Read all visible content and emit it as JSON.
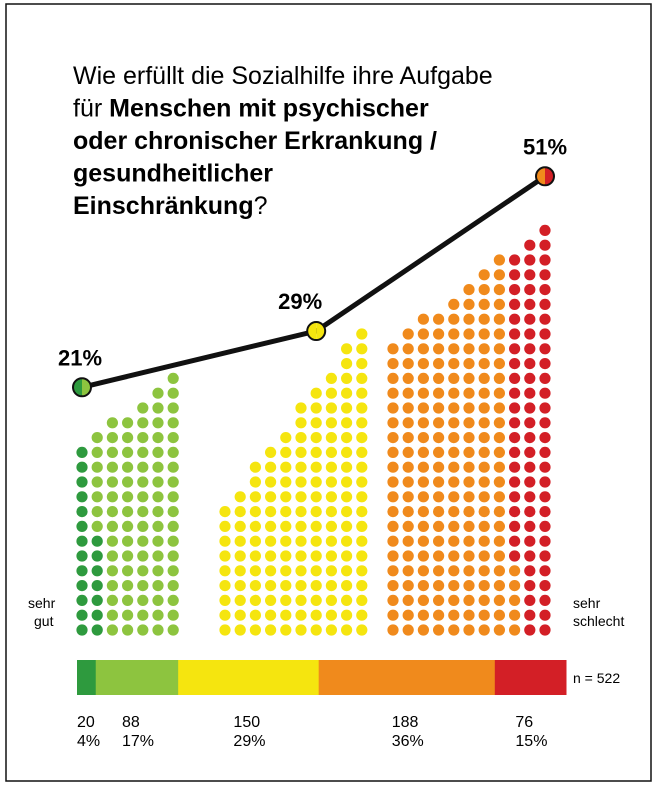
{
  "title_lines": [
    [
      {
        "text": "Wie erfüllt die Sozialhilfe ihre Aufgabe",
        "bold": false
      }
    ],
    [
      {
        "text": "für ",
        "bold": false
      },
      {
        "text": "Menschen mit psychischer",
        "bold": true
      }
    ],
    [
      {
        "text": "oder chronischer Erkrankung /",
        "bold": true
      }
    ],
    [
      {
        "text": "gesundheitlicher",
        "bold": true
      }
    ],
    [
      {
        "text": "Einschränkung",
        "bold": true
      },
      {
        "text": "?",
        "bold": false
      }
    ]
  ],
  "chart_data": {
    "type": "dot-staircase",
    "answers": {
      "values": [
        20,
        88,
        150,
        188,
        76
      ],
      "colors": [
        "#2e9a3e",
        "#8dc43f",
        "#f5e50f",
        "#f08a1c",
        "#d31f26"
      ],
      "percent": [
        4,
        17,
        29,
        36,
        15
      ],
      "percent_labels": [
        "4%",
        "17%",
        "29%",
        "36%",
        "15%"
      ]
    },
    "groups": {
      "values": [
        21,
        29,
        51
      ],
      "value_labels": [
        "21%",
        "29%",
        "51%"
      ]
    },
    "ylim": [
      0,
      60
    ],
    "left_label": [
      "sehr",
      "gut"
    ],
    "right_label": [
      "sehr",
      "schlecht"
    ],
    "n_label": "n = 522"
  }
}
